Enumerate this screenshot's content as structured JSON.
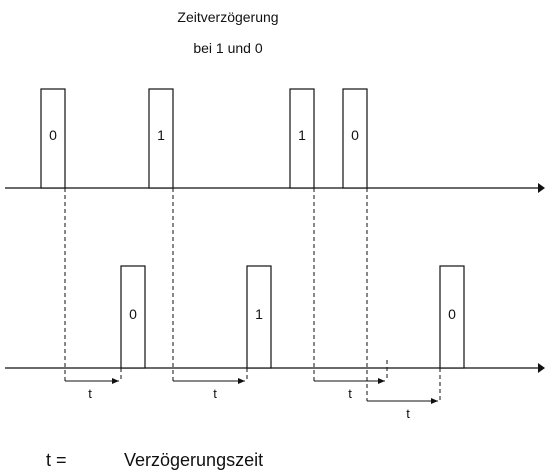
{
  "title": {
    "line1": "Zeitverzögerung",
    "line2": "bei 1 und 0"
  },
  "input_pulses": [
    "0",
    "1",
    "1",
    "0"
  ],
  "output_pulses": [
    "0",
    "1",
    "0"
  ],
  "delay_labels": [
    "t",
    "t",
    "t",
    "t"
  ],
  "legend": {
    "symbol": "t =",
    "text": "Verzögerungszeit"
  }
}
